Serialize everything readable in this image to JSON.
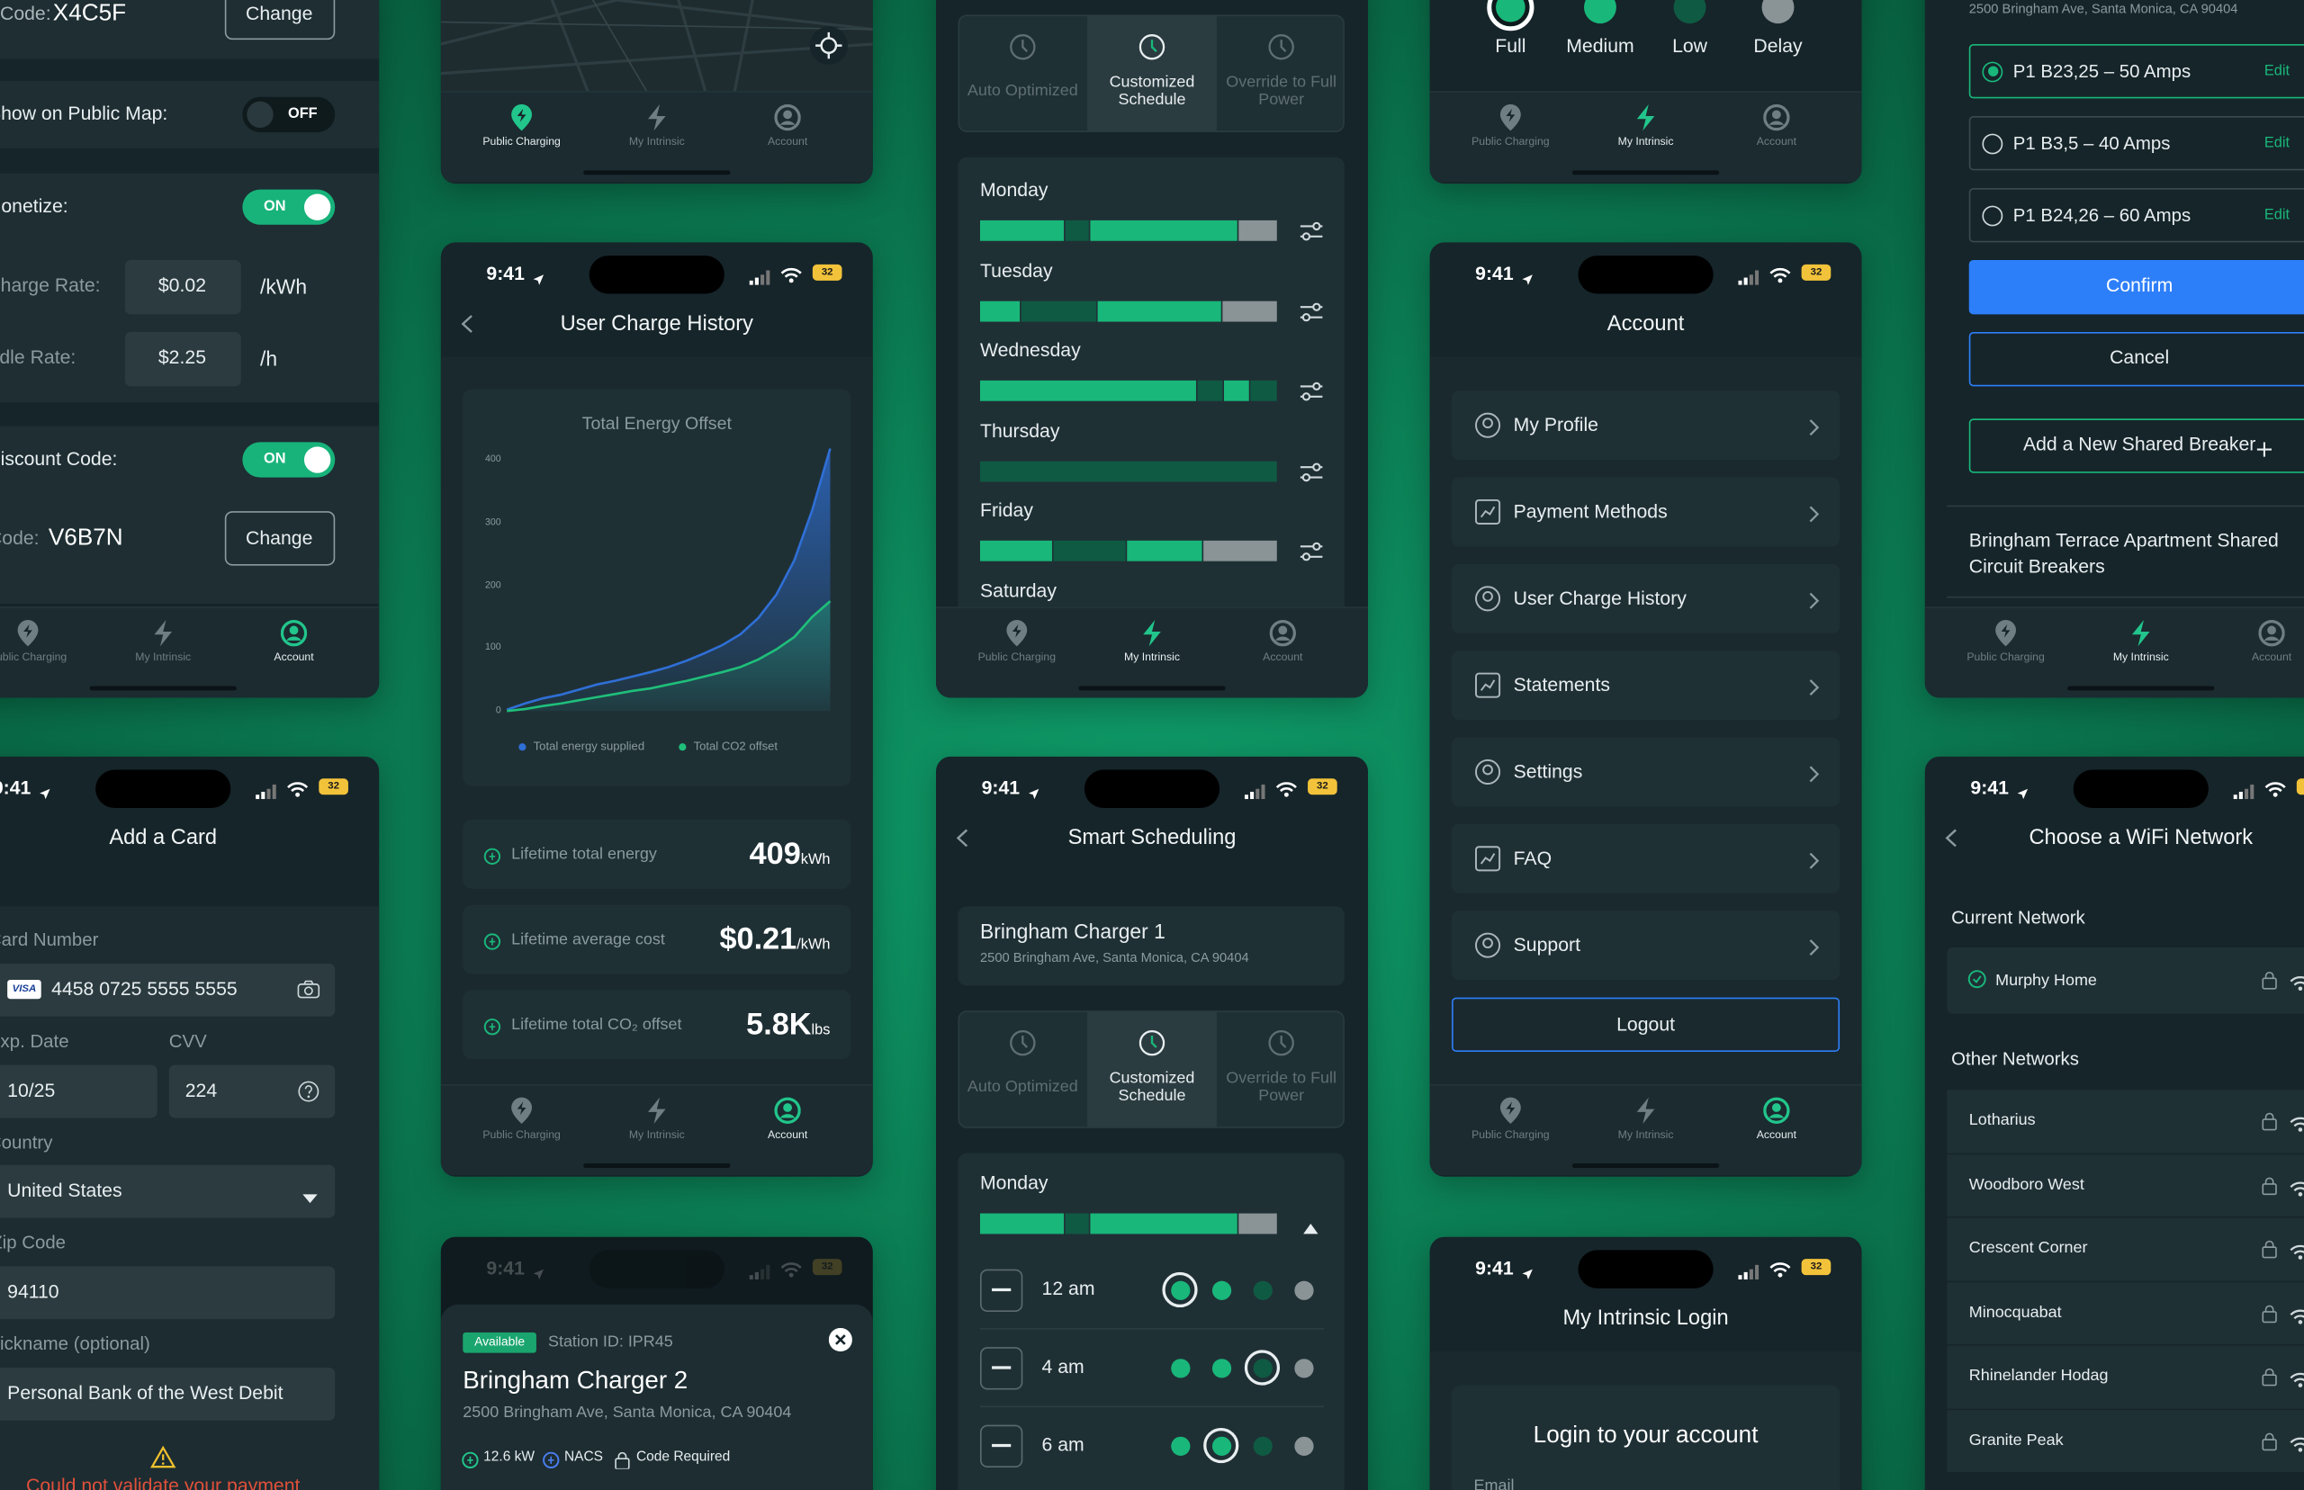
{
  "status": {
    "time": "9:41",
    "battery": "32"
  },
  "nav": [
    "Public Charging",
    "My Intrinsic",
    "Account"
  ],
  "modes": [
    "Auto Optimized",
    "Customized Schedule",
    "Override to Full Power"
  ],
  "settings": {
    "code_label": "Code:",
    "code": "X4C5F",
    "change": "Change",
    "public_map": "Show on Public Map:",
    "off": "OFF",
    "monetize": "Monetize:",
    "on": "ON",
    "charge_rate": "Charge Rate:",
    "charge_value": "$0.02",
    "charge_unit": "/kWh",
    "idle_rate": "Idle Rate:",
    "idle_value": "$2.25",
    "idle_unit": "/h",
    "discount": "Discount Code:",
    "code2": "V6B7N"
  },
  "card": {
    "title": "Add a Card",
    "number_label": "Card Number",
    "card_brand": "VISA",
    "number": "4458 0725 5555 5555",
    "exp_label": "Exp. Date",
    "exp": "10/25",
    "cvv_label": "CVV",
    "cvv": "224",
    "country_label": "Country",
    "country": "United States",
    "zip_label": "Zip Code",
    "zip": "94110",
    "nickname_label": "Nickname (optional)",
    "nickname": "Personal Bank of the West Debit",
    "error": "Could not validate your payment"
  },
  "charge_history": {
    "title": "User Charge History",
    "chart": {
      "type": "line",
      "title": "Total Energy Offset",
      "ylim": [
        0,
        420
      ],
      "yticks": [
        0,
        100,
        200,
        300,
        400
      ],
      "grid": false,
      "series": [
        {
          "name": "Total energy supplied",
          "color": "#2f6fd6",
          "values": [
            2,
            12,
            20,
            26,
            34,
            42,
            48,
            55,
            62,
            70,
            80,
            92,
            105,
            122,
            148,
            185,
            240,
            320,
            418
          ]
        },
        {
          "name": "Total CO2 offset",
          "color": "#1fbf7a",
          "values": [
            0,
            3,
            8,
            12,
            17,
            22,
            27,
            32,
            36,
            42,
            48,
            55,
            62,
            70,
            82,
            98,
            118,
            150,
            175
          ]
        }
      ]
    },
    "stats": [
      {
        "label": "Lifetime total energy",
        "value": "409",
        "unit": "kWh"
      },
      {
        "label": "Lifetime average cost",
        "value": "$0.21",
        "unit": "/kWh"
      },
      {
        "label": "Lifetime total CO₂ offset",
        "value": "5.8K",
        "unit": "lbs"
      }
    ]
  },
  "schedule": {
    "days": [
      "Monday",
      "Tuesday",
      "Wednesday",
      "Thursday",
      "Friday",
      "Saturday"
    ]
  },
  "smart": {
    "title": "Smart Scheduling",
    "charger": "Bringham Charger 1",
    "address": "2500 Bringham Ave, Santa Monica, CA 90404",
    "day": "Monday",
    "times": [
      "12 am",
      "4 am",
      "6 am"
    ]
  },
  "levels": [
    "Full",
    "Medium",
    "Low",
    "Delay"
  ],
  "account": {
    "title": "Account",
    "items": [
      "My Profile",
      "Payment Methods",
      "User Charge History",
      "Statements",
      "Settings",
      "FAQ",
      "Support"
    ],
    "logout": "Logout"
  },
  "login": {
    "title": "My Intrinsic Login",
    "heading": "Login to your account",
    "email": "Email"
  },
  "breakers": {
    "address": "2500 Bringham Ave, Santa Monica, CA 90404",
    "options": [
      "P1 B23,25 – 50 Amps",
      "P1 B3,5 – 40 Amps",
      "P1 B24,26 – 60 Amps"
    ],
    "edit": "Edit",
    "confirm": "Confirm",
    "cancel": "Cancel",
    "add": "Add a New Shared Breaker",
    "title": "Bringham Terrace Apartment Shared Circuit Breakers"
  },
  "wifi": {
    "title": "Choose a WiFi Network",
    "current_label": "Current Network",
    "current": "Murphy Home",
    "other_label": "Other Networks",
    "networks": [
      "Lotharius",
      "Woodboro West",
      "Crescent Corner",
      "Minocquabat",
      "Rhinelander Hodag",
      "Granite Peak"
    ]
  },
  "station": {
    "badge": "Available",
    "id": "Station ID: IPR45",
    "name": "Bringham Charger 2",
    "address": "2500 Bringham Ave, Santa Monica, CA 90404",
    "features": [
      "12.6 kW",
      "NACS",
      "Code Required"
    ]
  }
}
